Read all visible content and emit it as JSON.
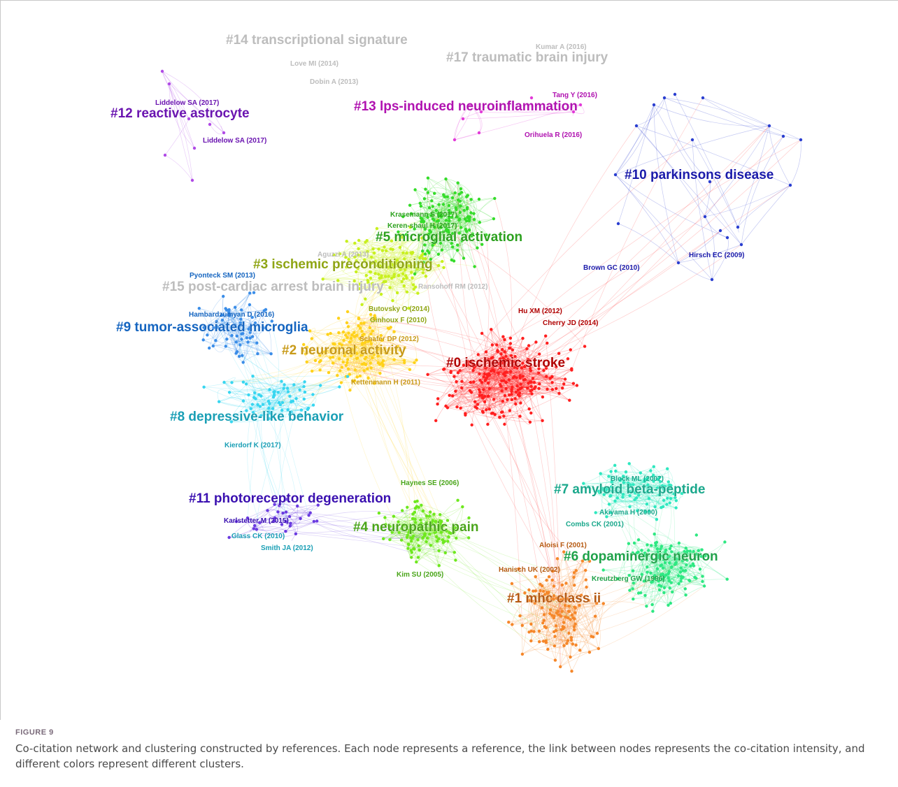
{
  "figure": {
    "label": "FIGURE 9",
    "caption": "Co-citation network and clustering constructed by references. Each node represents a reference, the link between nodes represents the co-citation intensity, and different colors represent different clusters."
  },
  "clusters": [
    {
      "id": 0,
      "label": "#0 ischemic stroke",
      "color": "#ff1f1f",
      "text_color": "#b00000"
    },
    {
      "id": 1,
      "label": "#1 mhc class ii",
      "color": "#f5872a",
      "text_color": "#b65a12"
    },
    {
      "id": 2,
      "label": "#2 neuronal activity",
      "color": "#ffd21a",
      "text_color": "#c89a18"
    },
    {
      "id": 3,
      "label": "#3 ischemic preconditioning",
      "color": "#c8f01e",
      "text_color": "#8fa514"
    },
    {
      "id": 4,
      "label": "#4 neuropathic pain",
      "color": "#6ee81e",
      "text_color": "#4aa51a"
    },
    {
      "id": 5,
      "label": "#5 microglial activation",
      "color": "#35dc2a",
      "text_color": "#2ca11e"
    },
    {
      "id": 6,
      "label": "#6 dopaminergic neuron",
      "color": "#2ee882",
      "text_color": "#1fa24a"
    },
    {
      "id": 7,
      "label": "#7 amyloid beta-peptide",
      "color": "#2ee8c0",
      "text_color": "#1ba88c"
    },
    {
      "id": 8,
      "label": "#8 depressive-like behavior",
      "color": "#38d6f0",
      "text_color": "#1a9fb5"
    },
    {
      "id": 9,
      "label": "#9 tumor-associated microglia",
      "color": "#3a8de8",
      "text_color": "#1565c0"
    },
    {
      "id": 10,
      "label": "#10 parkinsons disease",
      "color": "#2a3ed0",
      "text_color": "#1a1aaa"
    },
    {
      "id": 11,
      "label": "#11 photoreceptor degeneration",
      "color": "#6a3ae0",
      "text_color": "#3a10b0"
    },
    {
      "id": 12,
      "label": "#12 reactive astrocyte",
      "color": "#b04ae6",
      "text_color": "#6a14b0"
    },
    {
      "id": 13,
      "label": "#13 lps-induced neuroinflammation",
      "color": "#e23ad8",
      "text_color": "#b012b0"
    },
    {
      "id": 14,
      "label": "#14 transcriptional signature",
      "color": "#bdbdbd",
      "text_color": "#bdbdbd"
    },
    {
      "id": 15,
      "label": "#15 post-cardiac arrest brain injury",
      "color": "#bdbdbd",
      "text_color": "#bdbdbd"
    },
    {
      "id": 17,
      "label": "#17 traumatic brain injury",
      "color": "#bdbdbd",
      "text_color": "#bdbdbd"
    }
  ],
  "references": [
    {
      "label": "Kumar A (2016)",
      "cluster": 17
    },
    {
      "label": "Love MI (2014)",
      "cluster": 14
    },
    {
      "label": "Dobin A (2013)",
      "cluster": 14
    },
    {
      "label": "Tang Y (2016)",
      "cluster": 13
    },
    {
      "label": "Orihuela R (2016)",
      "cluster": 13
    },
    {
      "label": "Liddelow SA (2017)",
      "cluster": 12
    },
    {
      "label": "Liddelow SA (2017)",
      "cluster": 12
    },
    {
      "label": "Krasemann S (2017)",
      "cluster": 5
    },
    {
      "label": "Keren-shaul H (2017)",
      "cluster": 5
    },
    {
      "label": "Aguzzi A (2013)",
      "cluster": 15
    },
    {
      "label": "Ransohoff RM (2012)",
      "cluster": 15
    },
    {
      "label": "Pyonteck SM (2013)",
      "cluster": 9
    },
    {
      "label": "Hambardzumyan D (2016)",
      "cluster": 9
    },
    {
      "label": "Butovsky O (2014)",
      "cluster": 3
    },
    {
      "label": "Ginhoux F (2010)",
      "cluster": 3
    },
    {
      "label": "Schafer DP (2012)",
      "cluster": 2
    },
    {
      "label": "Kettenmann H (2011)",
      "cluster": 2
    },
    {
      "label": "Hu XM (2012)",
      "cluster": 0
    },
    {
      "label": "Cherry JD (2014)",
      "cluster": 0
    },
    {
      "label": "Brown GC (2010)",
      "cluster": 10
    },
    {
      "label": "Hirsch EC (2009)",
      "cluster": 10
    },
    {
      "label": "Kierdorf K (2017)",
      "cluster": 8
    },
    {
      "label": "Karlstetter M (2015)",
      "cluster": 11
    },
    {
      "label": "Glass CK (2010)",
      "cluster": 8
    },
    {
      "label": "Smith JA (2012)",
      "cluster": 8
    },
    {
      "label": "Haynes SE (2006)",
      "cluster": 4
    },
    {
      "label": "Kim SU (2005)",
      "cluster": 4
    },
    {
      "label": "Block ML (2007)",
      "cluster": 7
    },
    {
      "label": "Akiyama H (2000)",
      "cluster": 7
    },
    {
      "label": "Combs CK (2001)",
      "cluster": 7
    },
    {
      "label": "Aloisi F (2001)",
      "cluster": 1
    },
    {
      "label": "Hanisch UK (2002)",
      "cluster": 1
    },
    {
      "label": "Kreutzberg GW (1996)",
      "cluster": 6
    }
  ]
}
